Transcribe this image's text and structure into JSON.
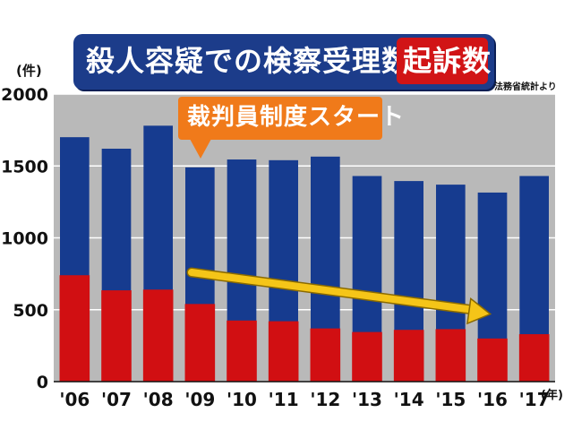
{
  "header": {
    "title_main": "殺人容疑での検察受理数と",
    "title_highlight": "起訴数",
    "source": "法務省統計より"
  },
  "axis": {
    "y_unit": "(件)",
    "x_unit": "(年)"
  },
  "annotation": {
    "text": "裁判員制度スタート"
  },
  "colors": {
    "received": "#163b8f",
    "indicted": "#d10f12",
    "plot_bg": "#b9b9b9",
    "title_bg": "#1c3c8a",
    "callout": "#f07a1a",
    "arrow": "#f5c518"
  },
  "chart_data": {
    "type": "bar",
    "categories": [
      "'06",
      "'07",
      "'08",
      "'09",
      "'10",
      "'11",
      "'12",
      "'13",
      "'14",
      "'15",
      "'16",
      "'17"
    ],
    "series": [
      {
        "values": [
          1700,
          1620,
          1780,
          1490,
          1545,
          1540,
          1565,
          1430,
          1395,
          1370,
          1315,
          1430
        ]
      },
      {
        "values": [
          740,
          635,
          640,
          540,
          425,
          420,
          370,
          345,
          360,
          365,
          300,
          330
        ]
      }
    ],
    "y_ticks": [
      0,
      500,
      1000,
      1500,
      2000
    ],
    "ylim": [
      0,
      2000
    ],
    "grid": true,
    "annotation_arrow": {
      "from_category": "'09",
      "to_category": "'16",
      "trend": "down"
    }
  }
}
